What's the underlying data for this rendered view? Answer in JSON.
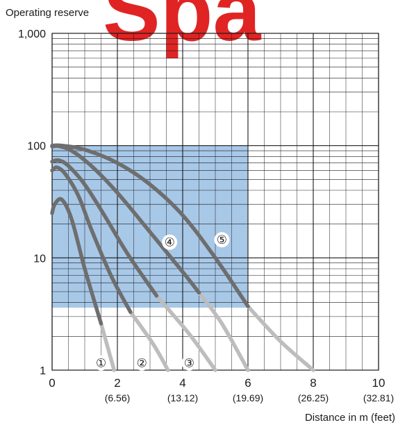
{
  "watermark": "Spa",
  "chart_data": {
    "type": "line",
    "ylabel": "Operating reserve",
    "xlabel": "Distance in m (feet)",
    "y_scale": "log",
    "ylim": [
      1,
      1000
    ],
    "xlim": [
      0,
      10
    ],
    "y_ticks": [
      {
        "value": 1,
        "label": "1"
      },
      {
        "value": 10,
        "label": "10"
      },
      {
        "value": 100,
        "label": "100"
      },
      {
        "value": 1000,
        "label": "1,000"
      }
    ],
    "x_ticks": [
      {
        "value": 0,
        "label": "0",
        "sub": ""
      },
      {
        "value": 2,
        "label": "2",
        "sub": "(6.56)"
      },
      {
        "value": 4,
        "label": "4",
        "sub": "(13.12)"
      },
      {
        "value": 6,
        "label": "6",
        "sub": "(19.69)"
      },
      {
        "value": 8,
        "label": "8",
        "sub": "(26.25)"
      },
      {
        "value": 10,
        "label": "10",
        "sub": "(32.81)"
      }
    ],
    "grid": true,
    "shaded_region": {
      "x": [
        0,
        6
      ],
      "y": [
        3.6,
        100
      ],
      "color": "#a8c8e8"
    },
    "series": [
      {
        "name": "①",
        "dark_end": 1.5,
        "label_at": [
          1.5,
          1.16
        ],
        "points": [
          [
            0,
            25
          ],
          [
            0.08,
            30
          ],
          [
            0.3,
            33
          ],
          [
            0.6,
            22
          ],
          [
            1.0,
            8
          ],
          [
            1.5,
            2.6
          ],
          [
            1.9,
            1
          ]
        ]
      },
      {
        "name": "②",
        "dark_end": 2.4,
        "label_at": [
          2.75,
          1.16
        ],
        "points": [
          [
            0,
            60
          ],
          [
            0.15,
            64
          ],
          [
            0.4,
            56
          ],
          [
            0.8,
            36
          ],
          [
            1.2,
            18
          ],
          [
            1.8,
            7
          ],
          [
            2.4,
            3.3
          ],
          [
            3.1,
            1.7
          ],
          [
            3.55,
            1
          ]
        ]
      },
      {
        "name": "③",
        "dark_end": 3.2,
        "label_at": [
          4.2,
          1.16
        ],
        "points": [
          [
            0,
            72
          ],
          [
            0.2,
            74
          ],
          [
            0.5,
            66
          ],
          [
            1.0,
            45
          ],
          [
            1.6,
            24
          ],
          [
            2.3,
            11
          ],
          [
            3.2,
            4.6
          ],
          [
            4.2,
            2.1
          ],
          [
            5.0,
            1
          ]
        ]
      },
      {
        "name": "④",
        "dark_end": 4.5,
        "label_at": [
          3.6,
          13.8
        ],
        "points": [
          [
            0,
            98
          ],
          [
            0.2,
            99
          ],
          [
            0.6,
            90
          ],
          [
            1.2,
            66
          ],
          [
            2.0,
            38
          ],
          [
            3.0,
            17
          ],
          [
            4.0,
            7.5
          ],
          [
            4.5,
            4.9
          ],
          [
            5.2,
            2.6
          ],
          [
            6.0,
            1
          ]
        ]
      },
      {
        "name": "⑤",
        "dark_end": 6.0,
        "label_at": [
          5.2,
          14.5
        ],
        "points": [
          [
            0,
            100
          ],
          [
            0.3,
            100
          ],
          [
            1.0,
            92
          ],
          [
            2.0,
            70
          ],
          [
            3.0,
            45
          ],
          [
            4.0,
            24
          ],
          [
            5.0,
            10
          ],
          [
            6.0,
            3.7
          ],
          [
            7.0,
            1.8
          ],
          [
            8.0,
            1
          ]
        ]
      }
    ],
    "colors": {
      "dark_curve": "#6e6e6e",
      "light_curve": "#bdbdbd",
      "grid": "#1a1a1a",
      "watermark": "#e02424"
    }
  }
}
